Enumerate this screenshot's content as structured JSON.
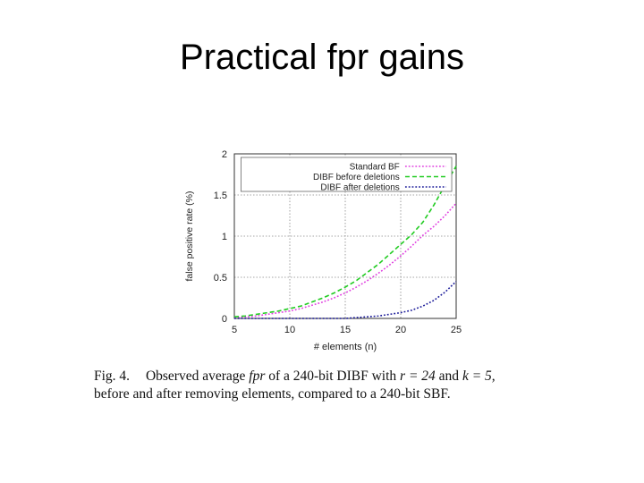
{
  "slide": {
    "title": "Practical fpr gains"
  },
  "caption": {
    "label": "Fig. 4.",
    "part1": "Observed average",
    "math1": "fpr",
    "part2": "of a 240-bit DIBF with",
    "math2": "r = 24",
    "part3": "and",
    "math3": "k = 5,",
    "line2": "before and after removing elements, compared to a 240-bit SBF."
  },
  "chart_data": {
    "type": "line",
    "xlabel": "# elements (n)",
    "ylabel": "false positive rate (%)",
    "xlim": [
      5,
      25
    ],
    "ylim": [
      0,
      2
    ],
    "xticks": [
      5,
      10,
      15,
      20,
      25
    ],
    "yticks": [
      0,
      0.5,
      1,
      1.5,
      2
    ],
    "ytick_labels": [
      "0",
      "0.5",
      "1",
      "1.5",
      "2"
    ],
    "grid": true,
    "legend_position": "top-right",
    "x": [
      5,
      6,
      7,
      8,
      9,
      10,
      11,
      12,
      13,
      14,
      15,
      16,
      17,
      18,
      19,
      20,
      21,
      22,
      23,
      24,
      25
    ],
    "series": [
      {
        "name": "Standard BF",
        "color": "#e040e0",
        "style": "dotted",
        "values": [
          0.01,
          0.02,
          0.03,
          0.05,
          0.07,
          0.09,
          0.12,
          0.16,
          0.2,
          0.25,
          0.31,
          0.38,
          0.46,
          0.55,
          0.65,
          0.76,
          0.88,
          1.01,
          1.12,
          1.25,
          1.4
        ]
      },
      {
        "name": "DIBF before deletions",
        "color": "#22cc22",
        "style": "dashed",
        "values": [
          0.02,
          0.03,
          0.05,
          0.07,
          0.09,
          0.12,
          0.15,
          0.2,
          0.25,
          0.31,
          0.38,
          0.46,
          0.56,
          0.66,
          0.78,
          0.9,
          1.02,
          1.17,
          1.38,
          1.62,
          1.85
        ]
      },
      {
        "name": "DIBF after deletions",
        "color": "#1a1a99",
        "style": "dotted",
        "values": [
          0.0,
          0.0,
          0.0,
          0.0,
          0.0,
          0.0,
          0.0,
          0.0,
          0.0,
          0.0,
          0.0,
          0.01,
          0.02,
          0.03,
          0.05,
          0.07,
          0.1,
          0.15,
          0.22,
          0.32,
          0.45
        ]
      }
    ]
  }
}
